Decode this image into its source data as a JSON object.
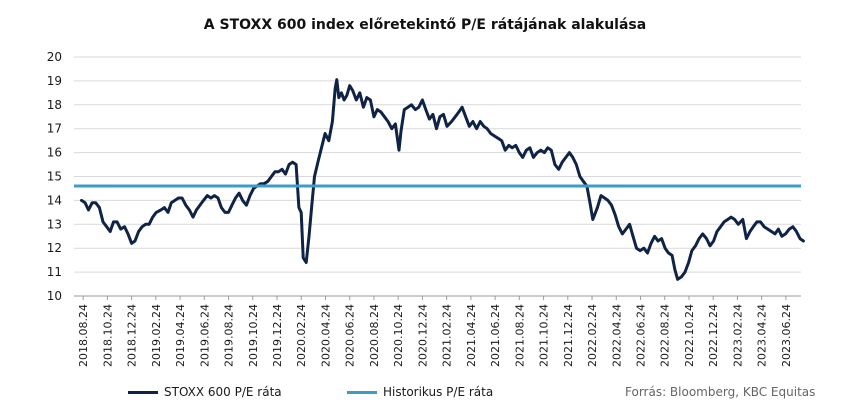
{
  "chart_data": {
    "type": "line",
    "title": "A STOXX 600 index előretekintő P/E rátájának alakulása",
    "y_axis": {
      "min": 10,
      "max": 20,
      "ticks": [
        10,
        11,
        12,
        13,
        14,
        15,
        16,
        17,
        18,
        19,
        20
      ]
    },
    "x_axis": {
      "start": "2018.08",
      "end": "2023.08",
      "tick_labels": [
        "2018.08.24",
        "2018.10.24",
        "2018.12.24",
        "2019.02.24",
        "2019.04.24",
        "2019.06.24",
        "2019.08.24",
        "2019.10.24",
        "2019.12.24",
        "2020.02.24",
        "2020.04.24",
        "2020.06.24",
        "2020.08.24",
        "2020.10.24",
        "2020.12.24",
        "2021.02.24",
        "2021.04.24",
        "2021.06.24",
        "2021.08.24",
        "2021.10.24",
        "2021.12.24",
        "2022.02.24",
        "2022.04.24",
        "2022.06.24",
        "2022.08.24",
        "2022.10.24",
        "2022.12.24",
        "2023.02.24",
        "2023.04.24",
        "2023.06.24"
      ]
    },
    "grid": "horizontal",
    "legend_position": "bottom",
    "series": [
      {
        "name": "STOXX 600 P/E ráta",
        "color": "#0f2346",
        "points": [
          [
            "2018.08.20",
            14.0
          ],
          [
            "2018.08.29",
            13.9
          ],
          [
            "2018.09.07",
            13.6
          ],
          [
            "2018.09.16",
            13.9
          ],
          [
            "2018.09.25",
            13.9
          ],
          [
            "2018.10.04",
            13.7
          ],
          [
            "2018.10.13",
            13.1
          ],
          [
            "2018.10.22",
            12.9
          ],
          [
            "2018.10.31",
            12.7
          ],
          [
            "2018.11.09",
            13.1
          ],
          [
            "2018.11.18",
            13.1
          ],
          [
            "2018.11.27",
            12.8
          ],
          [
            "2018.12.06",
            12.9
          ],
          [
            "2018.12.15",
            12.6
          ],
          [
            "2018.12.24",
            12.2
          ],
          [
            "2019.01.02",
            12.3
          ],
          [
            "2019.01.11",
            12.7
          ],
          [
            "2019.01.20",
            12.9
          ],
          [
            "2019.01.29",
            13.0
          ],
          [
            "2019.02.07",
            13.0
          ],
          [
            "2019.02.16",
            13.3
          ],
          [
            "2019.02.25",
            13.5
          ],
          [
            "2019.03.06",
            13.6
          ],
          [
            "2019.03.15",
            13.7
          ],
          [
            "2019.03.24",
            13.5
          ],
          [
            "2019.04.02",
            13.9
          ],
          [
            "2019.04.11",
            14.0
          ],
          [
            "2019.04.20",
            14.1
          ],
          [
            "2019.04.29",
            14.1
          ],
          [
            "2019.05.08",
            13.8
          ],
          [
            "2019.05.17",
            13.6
          ],
          [
            "2019.05.26",
            13.3
          ],
          [
            "2019.06.04",
            13.6
          ],
          [
            "2019.06.13",
            13.8
          ],
          [
            "2019.06.22",
            14.0
          ],
          [
            "2019.07.01",
            14.2
          ],
          [
            "2019.07.10",
            14.1
          ],
          [
            "2019.07.19",
            14.2
          ],
          [
            "2019.07.28",
            14.1
          ],
          [
            "2019.08.06",
            13.7
          ],
          [
            "2019.08.15",
            13.5
          ],
          [
            "2019.08.24",
            13.5
          ],
          [
            "2019.09.02",
            13.8
          ],
          [
            "2019.09.11",
            14.1
          ],
          [
            "2019.09.20",
            14.3
          ],
          [
            "2019.09.29",
            14.0
          ],
          [
            "2019.10.08",
            13.8
          ],
          [
            "2019.10.17",
            14.2
          ],
          [
            "2019.10.26",
            14.5
          ],
          [
            "2019.11.04",
            14.6
          ],
          [
            "2019.11.13",
            14.7
          ],
          [
            "2019.11.22",
            14.7
          ],
          [
            "2019.12.01",
            14.8
          ],
          [
            "2019.12.10",
            15.0
          ],
          [
            "2019.12.19",
            15.2
          ],
          [
            "2019.12.28",
            15.2
          ],
          [
            "2020.01.06",
            15.3
          ],
          [
            "2020.01.15",
            15.1
          ],
          [
            "2020.01.24",
            15.5
          ],
          [
            "2020.02.02",
            15.6
          ],
          [
            "2020.02.11",
            15.5
          ],
          [
            "2020.02.18",
            13.7
          ],
          [
            "2020.02.24",
            13.5
          ],
          [
            "2020.02.29",
            11.6
          ],
          [
            "2020.03.06",
            11.4
          ],
          [
            "2020.03.13",
            12.5
          ],
          [
            "2020.03.20",
            13.8
          ],
          [
            "2020.03.27",
            15.0
          ],
          [
            "2020.04.05",
            15.6
          ],
          [
            "2020.04.14",
            16.2
          ],
          [
            "2020.04.23",
            16.8
          ],
          [
            "2020.05.02",
            16.5
          ],
          [
            "2020.05.11",
            17.3
          ],
          [
            "2020.05.18",
            18.7
          ],
          [
            "2020.05.22",
            19.05
          ],
          [
            "2020.05.27",
            18.3
          ],
          [
            "2020.06.03",
            18.5
          ],
          [
            "2020.06.10",
            18.2
          ],
          [
            "2020.06.17",
            18.4
          ],
          [
            "2020.06.24",
            18.8
          ],
          [
            "2020.07.01",
            18.6
          ],
          [
            "2020.07.10",
            18.2
          ],
          [
            "2020.07.19",
            18.5
          ],
          [
            "2020.07.28",
            17.9
          ],
          [
            "2020.08.06",
            18.3
          ],
          [
            "2020.08.15",
            18.2
          ],
          [
            "2020.08.24",
            17.5
          ],
          [
            "2020.09.02",
            17.8
          ],
          [
            "2020.09.11",
            17.7
          ],
          [
            "2020.09.20",
            17.5
          ],
          [
            "2020.09.29",
            17.3
          ],
          [
            "2020.10.08",
            17.0
          ],
          [
            "2020.10.17",
            17.2
          ],
          [
            "2020.10.26",
            16.1
          ],
          [
            "2020.10.31",
            16.9
          ],
          [
            "2020.11.09",
            17.8
          ],
          [
            "2020.11.18",
            17.9
          ],
          [
            "2020.11.27",
            18.0
          ],
          [
            "2020.12.06",
            17.8
          ],
          [
            "2020.12.15",
            17.9
          ],
          [
            "2020.12.24",
            18.2
          ],
          [
            "2021.01.02",
            17.8
          ],
          [
            "2021.01.11",
            17.4
          ],
          [
            "2021.01.20",
            17.6
          ],
          [
            "2021.01.29",
            17.0
          ],
          [
            "2021.02.07",
            17.5
          ],
          [
            "2021.02.16",
            17.6
          ],
          [
            "2021.02.25",
            17.1
          ],
          [
            "2021.03.06",
            17.3
          ],
          [
            "2021.03.15",
            17.5
          ],
          [
            "2021.03.24",
            17.7
          ],
          [
            "2021.04.02",
            17.9
          ],
          [
            "2021.04.11",
            17.5
          ],
          [
            "2021.04.20",
            17.1
          ],
          [
            "2021.04.29",
            17.3
          ],
          [
            "2021.05.08",
            17.0
          ],
          [
            "2021.05.17",
            17.3
          ],
          [
            "2021.05.26",
            17.1
          ],
          [
            "2021.06.04",
            17.0
          ],
          [
            "2021.06.13",
            16.8
          ],
          [
            "2021.06.22",
            16.7
          ],
          [
            "2021.07.01",
            16.6
          ],
          [
            "2021.07.10",
            16.5
          ],
          [
            "2021.07.19",
            16.1
          ],
          [
            "2021.07.28",
            16.3
          ],
          [
            "2021.08.06",
            16.2
          ],
          [
            "2021.08.15",
            16.3
          ],
          [
            "2021.08.24",
            16.0
          ],
          [
            "2021.09.02",
            15.8
          ],
          [
            "2021.09.11",
            16.1
          ],
          [
            "2021.09.20",
            16.2
          ],
          [
            "2021.09.29",
            15.8
          ],
          [
            "2021.10.08",
            16.0
          ],
          [
            "2021.10.17",
            16.1
          ],
          [
            "2021.10.26",
            16.0
          ],
          [
            "2021.11.04",
            16.2
          ],
          [
            "2021.11.13",
            16.1
          ],
          [
            "2021.11.22",
            15.5
          ],
          [
            "2021.12.01",
            15.3
          ],
          [
            "2021.12.10",
            15.6
          ],
          [
            "2021.12.19",
            15.8
          ],
          [
            "2021.12.28",
            16.0
          ],
          [
            "2022.01.06",
            15.8
          ],
          [
            "2022.01.15",
            15.5
          ],
          [
            "2022.01.24",
            15.0
          ],
          [
            "2022.02.02",
            14.8
          ],
          [
            "2022.02.11",
            14.6
          ],
          [
            "2022.02.20",
            13.8
          ],
          [
            "2022.02.26",
            13.2
          ],
          [
            "2022.03.07",
            13.7
          ],
          [
            "2022.03.16",
            14.2
          ],
          [
            "2022.03.25",
            14.1
          ],
          [
            "2022.04.03",
            14.0
          ],
          [
            "2022.04.12",
            13.8
          ],
          [
            "2022.04.21",
            13.4
          ],
          [
            "2022.04.30",
            12.9
          ],
          [
            "2022.05.09",
            12.6
          ],
          [
            "2022.05.18",
            12.8
          ],
          [
            "2022.05.27",
            13.0
          ],
          [
            "2022.06.05",
            12.5
          ],
          [
            "2022.06.14",
            12.0
          ],
          [
            "2022.06.23",
            11.9
          ],
          [
            "2022.07.02",
            12.0
          ],
          [
            "2022.07.11",
            11.8
          ],
          [
            "2022.07.20",
            12.2
          ],
          [
            "2022.07.29",
            12.5
          ],
          [
            "2022.08.07",
            12.3
          ],
          [
            "2022.08.16",
            12.4
          ],
          [
            "2022.08.25",
            12.0
          ],
          [
            "2022.09.03",
            11.8
          ],
          [
            "2022.09.12",
            11.7
          ],
          [
            "2022.09.19",
            11.1
          ],
          [
            "2022.09.26",
            10.7
          ],
          [
            "2022.10.05",
            10.8
          ],
          [
            "2022.10.14",
            11.0
          ],
          [
            "2022.10.23",
            11.4
          ],
          [
            "2022.11.01",
            11.9
          ],
          [
            "2022.11.10",
            12.1
          ],
          [
            "2022.11.19",
            12.4
          ],
          [
            "2022.11.28",
            12.6
          ],
          [
            "2022.12.07",
            12.4
          ],
          [
            "2022.12.16",
            12.1
          ],
          [
            "2022.12.25",
            12.3
          ],
          [
            "2023.01.03",
            12.7
          ],
          [
            "2023.01.12",
            12.9
          ],
          [
            "2023.01.21",
            13.1
          ],
          [
            "2023.01.30",
            13.2
          ],
          [
            "2023.02.08",
            13.3
          ],
          [
            "2023.02.17",
            13.2
          ],
          [
            "2023.02.26",
            13.0
          ],
          [
            "2023.03.07",
            13.2
          ],
          [
            "2023.03.16",
            12.4
          ],
          [
            "2023.03.25",
            12.7
          ],
          [
            "2023.04.03",
            12.9
          ],
          [
            "2023.04.12",
            13.1
          ],
          [
            "2023.04.21",
            13.1
          ],
          [
            "2023.04.30",
            12.9
          ],
          [
            "2023.05.09",
            12.8
          ],
          [
            "2023.05.18",
            12.7
          ],
          [
            "2023.05.27",
            12.6
          ],
          [
            "2023.06.05",
            12.8
          ],
          [
            "2023.06.14",
            12.5
          ],
          [
            "2023.06.23",
            12.6
          ],
          [
            "2023.07.02",
            12.8
          ],
          [
            "2023.07.11",
            12.9
          ],
          [
            "2023.07.20",
            12.7
          ],
          [
            "2023.07.29",
            12.4
          ],
          [
            "2023.08.07",
            12.3
          ]
        ]
      },
      {
        "name": "Historikus P/E ráta",
        "color": "#3b9cc4",
        "constant": 14.6
      }
    ],
    "source": "Forrás: Bloomberg, KBC Equitas"
  }
}
